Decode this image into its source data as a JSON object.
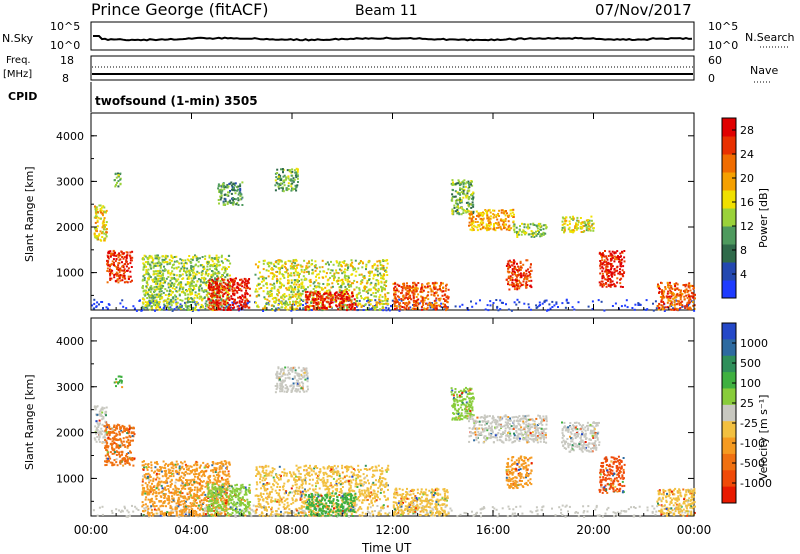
{
  "header": {
    "station": "Prince George (fitACF)",
    "beam": "Beam 11",
    "date": "07/Nov/2017"
  },
  "top_panels": {
    "nsky_label": "N.Sky",
    "nsky_ticks": [
      "10^5",
      "10^0"
    ],
    "nsearch_label": "N.Search",
    "nsearch_ticks": [
      "10^5",
      "10^0"
    ],
    "freq_label": "Freq.",
    "freq_unit": "[MHz]",
    "freq_ticks": [
      "18",
      "8"
    ],
    "nave_label": "Nave",
    "nave_ticks": [
      "60",
      "0"
    ],
    "cpid_label": "CPID",
    "cpid_text": "twofsound (1-min) 3505"
  },
  "colors": {
    "power_scale": [
      "#1f3cff",
      "#2348b0",
      "#2f6a4a",
      "#4e9a5e",
      "#9ad23a",
      "#f0e000",
      "#f5a000",
      "#f06c00",
      "#e83000",
      "#e00000"
    ],
    "velocity_scale": [
      "#2448c8",
      "#2d6aa0",
      "#2f8f5a",
      "#3fb040",
      "#88cc3a",
      "#c8c8c0",
      "#f2c040",
      "#f59a20",
      "#f07010",
      "#f04a08",
      "#e81a00"
    ]
  },
  "chart_data": [
    {
      "type": "heatmap",
      "panel": "power",
      "ylabel": "Slant Range [km]",
      "ylim": [
        180,
        4500
      ],
      "yticks": [
        "1000",
        "2000",
        "3000",
        "4000"
      ],
      "xlim": [
        0,
        24
      ],
      "colorbar_label": "Power [dB]",
      "colorbar_ticks": [
        "4",
        "8",
        "12",
        "16",
        "20",
        "24",
        "28"
      ],
      "colorbar_range": [
        0,
        30
      ],
      "echo_regions": [
        {
          "t": [
            0.1,
            0.6
          ],
          "r": [
            1700,
            2500
          ],
          "v": 16
        },
        {
          "t": [
            0.6,
            1.6
          ],
          "r": [
            800,
            1500
          ],
          "v": 24
        },
        {
          "t": [
            0.9,
            1.2
          ],
          "r": [
            2900,
            3200
          ],
          "v": 10
        },
        {
          "t": [
            2.0,
            5.5
          ],
          "r": [
            200,
            1400
          ],
          "v": 12
        },
        {
          "t": [
            4.6,
            6.3
          ],
          "r": [
            200,
            900
          ],
          "v": 26
        },
        {
          "t": [
            5.0,
            6.0
          ],
          "r": [
            2500,
            3000
          ],
          "v": 8
        },
        {
          "t": [
            6.5,
            11.8
          ],
          "r": [
            200,
            1300
          ],
          "v": 14
        },
        {
          "t": [
            7.3,
            8.2
          ],
          "r": [
            2800,
            3300
          ],
          "v": 10
        },
        {
          "t": [
            8.5,
            10.5
          ],
          "r": [
            200,
            600
          ],
          "v": 26
        },
        {
          "t": [
            12.0,
            14.2
          ],
          "r": [
            200,
            800
          ],
          "v": 22
        },
        {
          "t": [
            14.3,
            15.2
          ],
          "r": [
            2300,
            3050
          ],
          "v": 10
        },
        {
          "t": [
            15.0,
            16.8
          ],
          "r": [
            1950,
            2400
          ],
          "v": 18
        },
        {
          "t": [
            16.5,
            17.5
          ],
          "r": [
            650,
            1300
          ],
          "v": 24
        },
        {
          "t": [
            16.8,
            18.1
          ],
          "r": [
            1800,
            2100
          ],
          "v": 12
        },
        {
          "t": [
            18.7,
            20.0
          ],
          "r": [
            1900,
            2250
          ],
          "v": 14
        },
        {
          "t": [
            20.2,
            21.2
          ],
          "r": [
            700,
            1500
          ],
          "v": 26
        },
        {
          "t": [
            22.5,
            24.0
          ],
          "r": [
            200,
            800
          ],
          "v": 22
        }
      ]
    },
    {
      "type": "heatmap",
      "panel": "velocity",
      "ylabel": "Slant Range [km]",
      "ylim": [
        180,
        4500
      ],
      "yticks": [
        "1000",
        "2000",
        "3000",
        "4000"
      ],
      "xlim": [
        0,
        24
      ],
      "xlabel": "Time UT",
      "xticks": [
        "00:00",
        "04:00",
        "08:00",
        "12:00",
        "16:00",
        "20:00",
        "00:00"
      ],
      "colorbar_label": "Velocity [m s⁻¹]",
      "colorbar_ticks": [
        "1000",
        "500",
        "100",
        "25",
        "-25",
        "-100",
        "-500",
        "-1000"
      ],
      "echo_regions": [
        {
          "t": [
            0.1,
            0.6
          ],
          "r": [
            1800,
            2600
          ],
          "v": "#c8c8c0"
        },
        {
          "t": [
            0.5,
            1.7
          ],
          "r": [
            1300,
            2200
          ],
          "v": "#f07010"
        },
        {
          "t": [
            0.9,
            1.2
          ],
          "r": [
            3000,
            3250
          ],
          "v": "#3fb040"
        },
        {
          "t": [
            2.0,
            5.5
          ],
          "r": [
            200,
            1400
          ],
          "v": "#f59a20"
        },
        {
          "t": [
            4.6,
            6.3
          ],
          "r": [
            200,
            900
          ],
          "v": "#88cc3a"
        },
        {
          "t": [
            6.5,
            11.8
          ],
          "r": [
            200,
            1300
          ],
          "v": "#f2c040"
        },
        {
          "t": [
            7.3,
            8.6
          ],
          "r": [
            2900,
            3450
          ],
          "v": "#c8c8c0"
        },
        {
          "t": [
            8.5,
            10.5
          ],
          "r": [
            200,
            700
          ],
          "v": "#3fb040"
        },
        {
          "t": [
            12.0,
            14.2
          ],
          "r": [
            200,
            800
          ],
          "v": "#f2c040"
        },
        {
          "t": [
            14.3,
            15.2
          ],
          "r": [
            2300,
            3000
          ],
          "v": "#88cc3a"
        },
        {
          "t": [
            15.0,
            18.1
          ],
          "r": [
            1800,
            2400
          ],
          "v": "#c8c8c0"
        },
        {
          "t": [
            16.5,
            17.5
          ],
          "r": [
            800,
            1500
          ],
          "v": "#f59a20"
        },
        {
          "t": [
            18.7,
            20.2
          ],
          "r": [
            1600,
            2250
          ],
          "v": "#c8c8c0"
        },
        {
          "t": [
            20.2,
            21.2
          ],
          "r": [
            700,
            1500
          ],
          "v": "#f04a08"
        },
        {
          "t": [
            22.5,
            24.0
          ],
          "r": [
            200,
            800
          ],
          "v": "#f2c040"
        }
      ]
    }
  ]
}
